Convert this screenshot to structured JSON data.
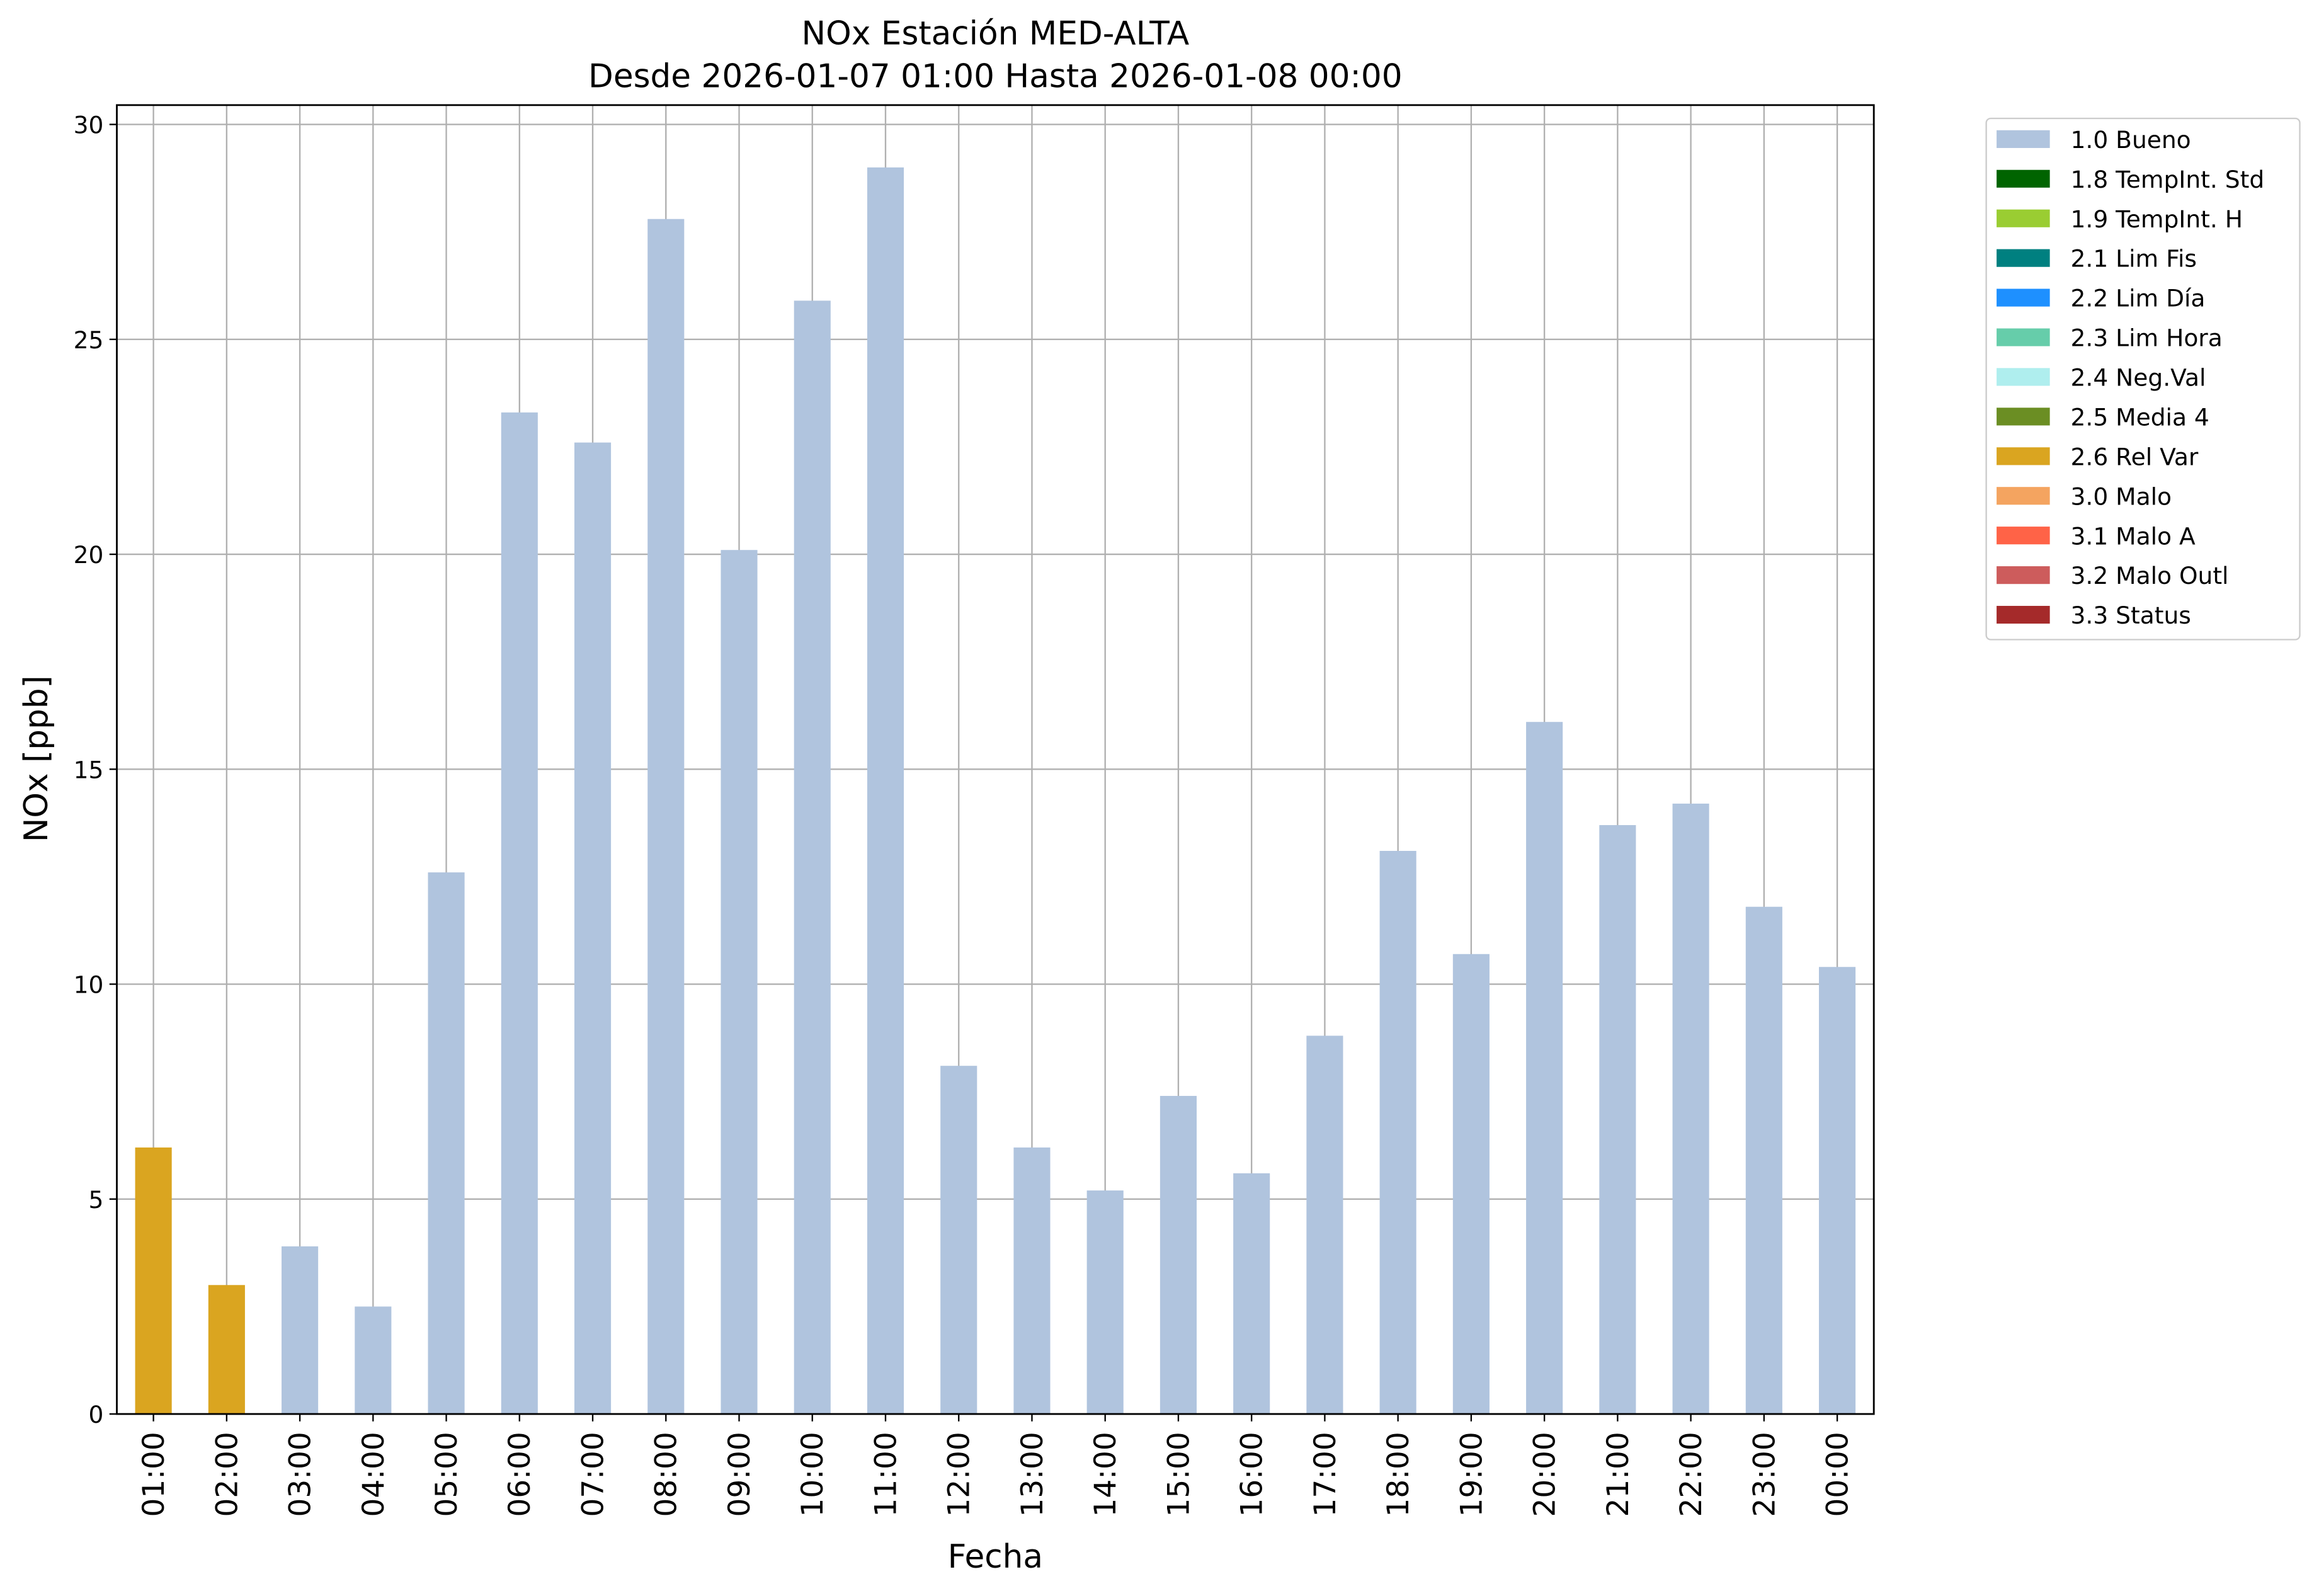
{
  "chart_data": {
    "type": "bar",
    "stacked": true,
    "title": "NOx Estación MED-ALTA",
    "subtitle": "Desde 2026-01-07 01:00 Hasta 2026-01-08 00:00",
    "x_label": "Fecha",
    "y_label": "NOx [ppb]",
    "categories": [
      "01:00",
      "02:00",
      "03:00",
      "04:00",
      "05:00",
      "06:00",
      "07:00",
      "08:00",
      "09:00",
      "10:00",
      "11:00",
      "12:00",
      "13:00",
      "14:00",
      "15:00",
      "16:00",
      "17:00",
      "18:00",
      "19:00",
      "20:00",
      "21:00",
      "22:00",
      "23:00",
      "00:00"
    ],
    "ylim": [
      0,
      30.45
    ],
    "yticks": [
      0,
      5,
      10,
      15,
      20,
      25,
      30
    ],
    "grid": true,
    "legend": "outside-right",
    "series": [
      {
        "name": "1.0 Bueno",
        "color": "#b0c4de",
        "values": [
          null,
          null,
          3.9,
          2.5,
          12.6,
          23.3,
          22.6,
          27.8,
          20.1,
          25.9,
          29.0,
          8.1,
          6.2,
          5.2,
          7.4,
          5.6,
          8.8,
          13.1,
          10.7,
          16.1,
          13.7,
          14.2,
          11.8,
          10.4
        ]
      },
      {
        "name": "1.8 TempInt. Std",
        "color": "#006400",
        "values": [
          null,
          null,
          null,
          null,
          null,
          null,
          null,
          null,
          null,
          null,
          null,
          null,
          null,
          null,
          null,
          null,
          null,
          null,
          null,
          null,
          null,
          null,
          null,
          null
        ]
      },
      {
        "name": "1.9 TempInt. H",
        "color": "#9acd32",
        "values": [
          null,
          null,
          null,
          null,
          null,
          null,
          null,
          null,
          null,
          null,
          null,
          null,
          null,
          null,
          null,
          null,
          null,
          null,
          null,
          null,
          null,
          null,
          null,
          null
        ]
      },
      {
        "name": "2.1 Lim Fis",
        "color": "#008080",
        "values": [
          null,
          null,
          null,
          null,
          null,
          null,
          null,
          null,
          null,
          null,
          null,
          null,
          null,
          null,
          null,
          null,
          null,
          null,
          null,
          null,
          null,
          null,
          null,
          null
        ]
      },
      {
        "name": "2.2 Lim Día",
        "color": "#1e90ff",
        "values": [
          null,
          null,
          null,
          null,
          null,
          null,
          null,
          null,
          null,
          null,
          null,
          null,
          null,
          null,
          null,
          null,
          null,
          null,
          null,
          null,
          null,
          null,
          null,
          null
        ]
      },
      {
        "name": "2.3 Lim Hora",
        "color": "#66cdaa",
        "values": [
          null,
          null,
          null,
          null,
          null,
          null,
          null,
          null,
          null,
          null,
          null,
          null,
          null,
          null,
          null,
          null,
          null,
          null,
          null,
          null,
          null,
          null,
          null,
          null
        ]
      },
      {
        "name": "2.4 Neg.Val",
        "color": "#afeeee",
        "values": [
          null,
          null,
          null,
          null,
          null,
          null,
          null,
          null,
          null,
          null,
          null,
          null,
          null,
          null,
          null,
          null,
          null,
          null,
          null,
          null,
          null,
          null,
          null,
          null
        ]
      },
      {
        "name": "2.5 Media 4",
        "color": "#6b8e23",
        "values": [
          null,
          null,
          null,
          null,
          null,
          null,
          null,
          null,
          null,
          null,
          null,
          null,
          null,
          null,
          null,
          null,
          null,
          null,
          null,
          null,
          null,
          null,
          null,
          null
        ]
      },
      {
        "name": "2.6 Rel Var",
        "color": "#daa520",
        "values": [
          6.2,
          3.0,
          null,
          null,
          null,
          null,
          null,
          null,
          null,
          null,
          null,
          null,
          null,
          null,
          null,
          null,
          null,
          null,
          null,
          null,
          null,
          null,
          null,
          null
        ]
      },
      {
        "name": "3.0 Malo",
        "color": "#f4a460",
        "values": [
          null,
          null,
          null,
          null,
          null,
          null,
          null,
          null,
          null,
          null,
          null,
          null,
          null,
          null,
          null,
          null,
          null,
          null,
          null,
          null,
          null,
          null,
          null,
          null
        ]
      },
      {
        "name": "3.1 Malo A",
        "color": "#ff6347",
        "values": [
          null,
          null,
          null,
          null,
          null,
          null,
          null,
          null,
          null,
          null,
          null,
          null,
          null,
          null,
          null,
          null,
          null,
          null,
          null,
          null,
          null,
          null,
          null,
          null
        ]
      },
      {
        "name": "3.2 Malo Outl",
        "color": "#cd5c5c",
        "values": [
          null,
          null,
          null,
          null,
          null,
          null,
          null,
          null,
          null,
          null,
          null,
          null,
          null,
          null,
          null,
          null,
          null,
          null,
          null,
          null,
          null,
          null,
          null,
          null
        ]
      },
      {
        "name": "3.3 Status",
        "color": "#a52a2a",
        "values": [
          null,
          null,
          null,
          null,
          null,
          null,
          null,
          null,
          null,
          null,
          null,
          null,
          null,
          null,
          null,
          null,
          null,
          null,
          null,
          null,
          null,
          null,
          null,
          null
        ]
      }
    ]
  }
}
